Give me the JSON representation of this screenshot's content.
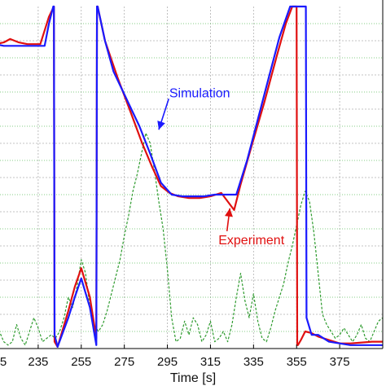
{
  "chart_data": {
    "type": "line",
    "title": "",
    "xlabel": "Time [s]",
    "ylabel": "",
    "xlim": [
      215,
      395
    ],
    "ylim": [
      0,
      10
    ],
    "grid": true,
    "x_ticks": [
      235,
      255,
      275,
      295,
      315,
      335,
      355,
      375
    ],
    "x_tick_labels": [
      "235",
      "255",
      "275",
      "295",
      "315",
      "335",
      "355",
      "375"
    ],
    "edge_tick_label": "5",
    "colors": {
      "Simulation": "#1a1aff",
      "Experiment": "#e01010",
      "signal": "#2e9b2e",
      "grid": "#b0b0b0",
      "secondary_grid": "#5fbf5f"
    },
    "annotations": [
      {
        "text": "Simulation",
        "color": "#1a1aff",
        "xy": [
          291,
          6.4
        ],
        "xytext": [
          310,
          7.35
        ]
      },
      {
        "text": "Experiment",
        "color": "#e01010",
        "xy": [
          324,
          4.1
        ],
        "xytext": [
          334,
          3.05
        ]
      }
    ],
    "series": [
      {
        "name": "Simulation",
        "color": "#1a1aff",
        "x": [
          215,
          219,
          225,
          232,
          238,
          240,
          242,
          242.3,
          242.6,
          244,
          249,
          252,
          255,
          259,
          262,
          262.3,
          262.6,
          266,
          270,
          276,
          282,
          287,
          292,
          297,
          302,
          307,
          312,
          317,
          322,
          327,
          332,
          337,
          342,
          347,
          352,
          356,
          356.4,
          357,
          359.3,
          359.6,
          362,
          365,
          370,
          375,
          380,
          385,
          390,
          395
        ],
        "y": [
          8.9,
          8.85,
          8.85,
          8.85,
          8.85,
          9.5,
          10,
          10,
          0.4,
          0.05,
          0.9,
          1.5,
          2.05,
          1.2,
          0.1,
          10,
          10,
          9.0,
          8.1,
          7.3,
          6.5,
          5.7,
          4.85,
          4.5,
          4.45,
          4.45,
          4.45,
          4.5,
          4.5,
          4.5,
          5.5,
          6.7,
          7.9,
          9.1,
          10.0,
          10.0,
          10.0,
          10.0,
          10,
          0.9,
          0.4,
          0.4,
          0.2,
          0.15,
          0.1,
          0.1,
          0.1,
          0.1
        ]
      },
      {
        "name": "Experiment",
        "color": "#e01010",
        "x": [
          215,
          219,
          222,
          226,
          230,
          236,
          238,
          240,
          242.3,
          242.6,
          244,
          249,
          252,
          255,
          259,
          262,
          262.3,
          262.6,
          266,
          272,
          278,
          283,
          288,
          292,
          296,
          300,
          305,
          310,
          315,
          320,
          323,
          326,
          329,
          334,
          340,
          346,
          350,
          353,
          355,
          355.3,
          355.6,
          357,
          359,
          362,
          365,
          370,
          375,
          380,
          390,
          395
        ],
        "y": [
          8.9,
          8.95,
          9.05,
          8.95,
          8.9,
          8.9,
          9.3,
          9.7,
          10,
          0.2,
          0.05,
          1.1,
          1.8,
          2.35,
          1.5,
          0.3,
          10,
          10,
          9.0,
          7.9,
          6.9,
          6.05,
          5.3,
          4.75,
          4.55,
          4.45,
          4.4,
          4.4,
          4.45,
          4.55,
          4.3,
          4.05,
          4.8,
          5.9,
          7.2,
          8.6,
          9.5,
          10.0,
          10.0,
          0.1,
          0.1,
          0.25,
          0.5,
          0.45,
          0.35,
          0.25,
          0.15,
          0.15,
          0.2,
          0.2
        ]
      },
      {
        "name": "",
        "color": "#2e9b2e",
        "dashed": true,
        "x": [
          215,
          217,
          219,
          221,
          223,
          225,
          227,
          229,
          231,
          233,
          235,
          237,
          239,
          241,
          243,
          245,
          247,
          249,
          251,
          253,
          255,
          257,
          259,
          261,
          263,
          265,
          267,
          269,
          271,
          273,
          275,
          277,
          279,
          281,
          283,
          285,
          287,
          289,
          291,
          293,
          295,
          297,
          299,
          301,
          303,
          305,
          307,
          309,
          311,
          313,
          315,
          317,
          319,
          321,
          323,
          325,
          327,
          329,
          331,
          333,
          335,
          337,
          339,
          341,
          343,
          345,
          347,
          349,
          351,
          353,
          355,
          357,
          359,
          361,
          363,
          365,
          367,
          369,
          371,
          373,
          375,
          377,
          379,
          381,
          383,
          385,
          387,
          389,
          391,
          393,
          395
        ],
        "y": [
          0.4,
          0.5,
          0.2,
          0.1,
          0.2,
          0.7,
          0.3,
          0.1,
          0.5,
          0.9,
          0.6,
          0.2,
          0.3,
          0.4,
          0.3,
          0.5,
          0.9,
          1.5,
          1.2,
          1.8,
          2.6,
          2.2,
          1.2,
          0.7,
          0.5,
          0.7,
          1.1,
          1.6,
          2.1,
          2.6,
          3.3,
          3.9,
          4.6,
          5.1,
          5.7,
          6.3,
          6.0,
          5.2,
          4.3,
          3.5,
          2.3,
          0.9,
          0.2,
          0.3,
          0.8,
          0.4,
          0.9,
          0.7,
          0.2,
          0.4,
          0.8,
          0.2,
          0.3,
          0.5,
          0.2,
          0.7,
          1.5,
          2.2,
          1.4,
          0.9,
          1.6,
          0.8,
          0.3,
          0.2,
          0.6,
          1.1,
          1.5,
          1.9,
          2.5,
          3.0,
          3.6,
          4.2,
          4.6,
          4.3,
          3.4,
          2.2,
          1.0,
          0.7,
          0.5,
          0.3,
          0.4,
          0.6,
          0.4,
          0.2,
          0.4,
          0.7,
          0.3,
          0.2,
          0.5,
          0.8,
          0.9
        ]
      }
    ]
  }
}
